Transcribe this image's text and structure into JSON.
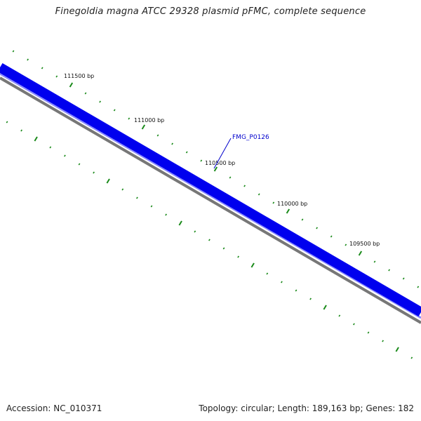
{
  "title": "Finegoldia magna ATCC 29328 plasmid pFMC, complete sequence",
  "footer": {
    "accession": "Accession: NC_010371",
    "summary": "Topology: circular; Length: 189,163 bp; Genes: 182"
  },
  "map": {
    "position_labels": [
      "111500 bp",
      "111000 bp",
      "110500 bp",
      "110000 bp",
      "109500 bp"
    ],
    "gene_label": "FMG_P0126",
    "colors": {
      "gene_band": "#0000ee",
      "gene_band_light": "#8888ff",
      "backbone": "#777777",
      "tick": "#1a8a1a",
      "gene_label": "#0000cc"
    }
  }
}
